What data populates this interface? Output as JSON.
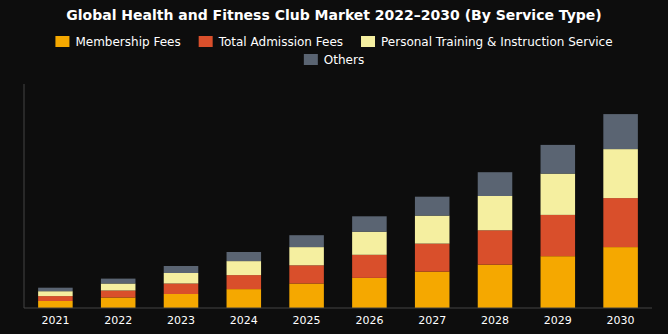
{
  "chart_data": {
    "type": "bar",
    "stacked": true,
    "title": "Global Health and Fitness Club Market 2022–2030 (By Service Type)",
    "categories": [
      "2021",
      "2022",
      "2023",
      "2024",
      "2025",
      "2026",
      "2027",
      "2028",
      "2029",
      "2030"
    ],
    "series": [
      {
        "name": "Membership Fees",
        "color": "#F5A800",
        "values": [
          1.0,
          1.5,
          2.0,
          2.7,
          3.5,
          4.3,
          5.2,
          6.2,
          7.4,
          8.7
        ]
      },
      {
        "name": "Total Admission Fees",
        "color": "#D94F2B",
        "values": [
          0.7,
          1.0,
          1.5,
          2.0,
          2.6,
          3.3,
          4.0,
          4.9,
          5.9,
          7.0
        ]
      },
      {
        "name": "Personal Training & Instruction Service",
        "color": "#F5EFA0",
        "values": [
          0.7,
          1.0,
          1.5,
          2.0,
          2.6,
          3.3,
          4.0,
          4.9,
          5.9,
          7.0
        ]
      },
      {
        "name": "Others",
        "color": "#5A6472",
        "values": [
          0.5,
          0.7,
          1.0,
          1.3,
          1.7,
          2.2,
          2.7,
          3.4,
          4.1,
          5.0
        ]
      }
    ],
    "ylim": [
      0,
      32
    ],
    "grid": false,
    "legend": "top",
    "tick_labels": "x"
  }
}
